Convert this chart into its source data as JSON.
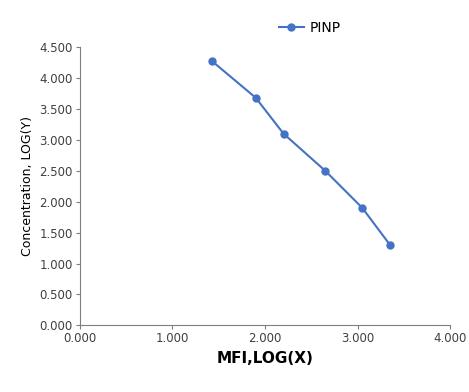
{
  "x": [
    1.43,
    1.9,
    2.2,
    2.65,
    3.05,
    3.35
  ],
  "y": [
    4.27,
    3.68,
    3.1,
    2.5,
    1.9,
    1.3
  ],
  "line_color": "#4472C4",
  "marker": "o",
  "marker_size": 5,
  "line_width": 1.5,
  "legend_label": "PINP",
  "xlabel": "MFI,LOG(X)",
  "ylabel": "Concentration, LOG(Y)",
  "xlim": [
    0.0,
    4.0
  ],
  "ylim": [
    0.0,
    4.5
  ],
  "xticks": [
    0.0,
    1.0,
    2.0,
    3.0,
    4.0
  ],
  "yticks": [
    0.0,
    0.5,
    1.0,
    1.5,
    2.0,
    2.5,
    3.0,
    3.5,
    4.0,
    4.5
  ],
  "xtick_labels": [
    "0.000",
    "1.000",
    "2.000",
    "3.000",
    "4.000"
  ],
  "ytick_labels": [
    "0.000",
    "0.500",
    "1.000",
    "1.500",
    "2.000",
    "2.500",
    "3.000",
    "3.500",
    "4.000",
    "4.500"
  ],
  "background_color": "#ffffff",
  "xlabel_fontsize": 11,
  "ylabel_fontsize": 9,
  "tick_fontsize": 8.5,
  "legend_fontsize": 10,
  "spine_color": "#7f7f7f"
}
